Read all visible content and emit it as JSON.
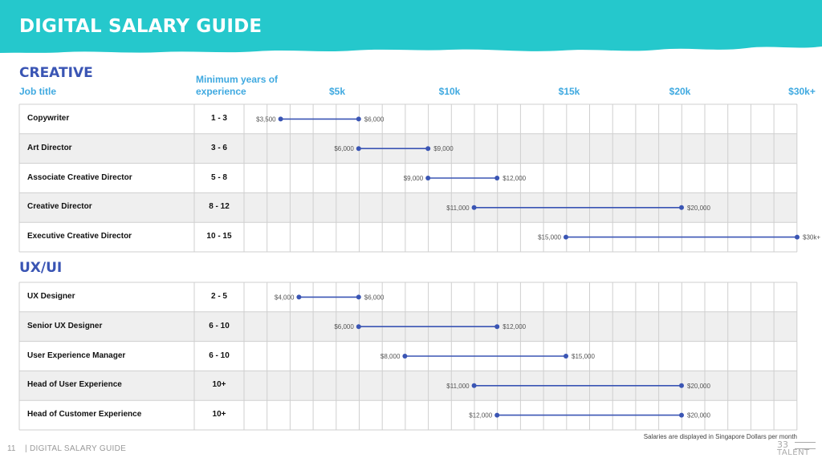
{
  "header": {
    "title": "DIGITAL SALARY GUIDE",
    "banner_color": "#25c8cc"
  },
  "columns": {
    "job_title": "Job title",
    "min_years_line1": "Minimum years of",
    "min_years_line2": "experience",
    "axis_labels": [
      "$5k",
      "$10k",
      "$15k",
      "$20k",
      "$30k+"
    ]
  },
  "sections": [
    {
      "title": "CREATIVE",
      "rows": [
        {
          "title": "Copywriter",
          "years": "1 - 3",
          "min": 3500,
          "max": 6000,
          "min_label": "$3,500",
          "max_label": "$6,000"
        },
        {
          "title": "Art Director",
          "years": "3 - 6",
          "min": 6000,
          "max": 9000,
          "min_label": "$6,000",
          "max_label": "$9,000"
        },
        {
          "title": "Associate Creative Director",
          "years": "5 - 8",
          "min": 9000,
          "max": 12000,
          "min_label": "$9,000",
          "max_label": "$12,000"
        },
        {
          "title": "Creative Director",
          "years": "8 - 12",
          "min": 11000,
          "max": 20000,
          "min_label": "$11,000",
          "max_label": "$20,000"
        },
        {
          "title": "Executive Creative Director",
          "years": "10 - 15",
          "min": 15000,
          "max": 30000,
          "min_label": "$15,000",
          "max_label": "$30k+"
        }
      ]
    },
    {
      "title": "UX/UI",
      "rows": [
        {
          "title": "UX Designer",
          "years": "2 - 5",
          "min": 4000,
          "max": 6000,
          "min_label": "$4,000",
          "max_label": "$6,000"
        },
        {
          "title": "Senior UX Designer",
          "years": "6 - 10",
          "min": 6000,
          "max": 12000,
          "min_label": "$6,000",
          "max_label": "$12,000"
        },
        {
          "title": "User Experience Manager",
          "years": "6 - 10",
          "min": 8000,
          "max": 15000,
          "min_label": "$8,000",
          "max_label": "$15,000"
        },
        {
          "title": "Head of User Experience",
          "years": "10+",
          "min": 11000,
          "max": 20000,
          "min_label": "$11,000",
          "max_label": "$20,000"
        },
        {
          "title": "Head of Customer Experience",
          "years": "10+",
          "min": 12000,
          "max": 20000,
          "min_label": "$12,000",
          "max_label": "$20,000"
        }
      ]
    }
  ],
  "footer": {
    "page_number": "11",
    "guide_title": "| DIGITAL SALARY GUIDE",
    "note": "Salaries are displayed in Singapore Dollars per month",
    "logo_number": "33",
    "logo_word": "TALENT"
  },
  "colors": {
    "bar": "#3a55b4",
    "accent": "#3fa9e0",
    "section_title": "#3a55b4",
    "grid": "#cfcfcf",
    "row_shade": "#efefef"
  }
}
